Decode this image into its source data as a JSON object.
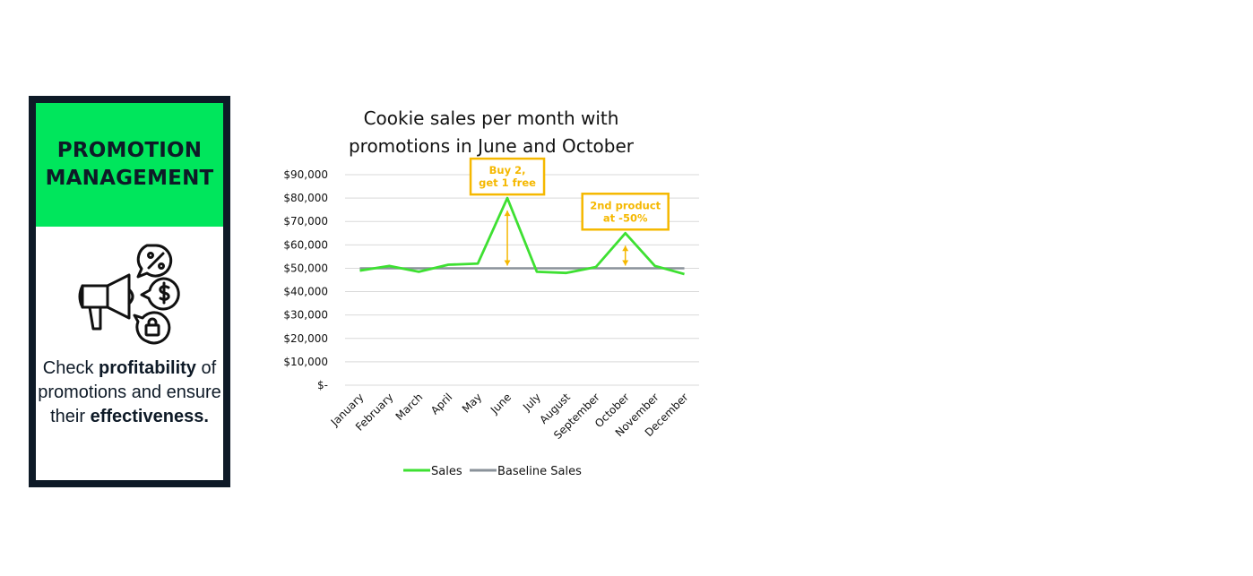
{
  "card": {
    "title_line1": "PROMOTION",
    "title_line2": "MANAGEMENT",
    "icon": "megaphone-with-percent-dollar-lock-bubbles-icon",
    "text_part1": "Check ",
    "text_bold1": "profitability",
    "text_part2": " of promotions and ensure their ",
    "text_bold2": "effectiveness."
  },
  "colors": {
    "accent_green": "#00e65c",
    "dark_navy": "#0e1a27",
    "sales_line": "#3ee032",
    "baseline_line": "#8a929a",
    "annotation": "#f5b800"
  },
  "chart_data": {
    "type": "line",
    "title_line1": "Cookie sales per month with",
    "title_line2": "promotions in June and October",
    "categories": [
      "January",
      "February",
      "March",
      "April",
      "May",
      "June",
      "July",
      "August",
      "September",
      "October",
      "November",
      "December"
    ],
    "series": [
      {
        "name": "Sales",
        "values": [
          49000,
          51000,
          48500,
          51500,
          52000,
          80000,
          48500,
          48000,
          50500,
          65000,
          51000,
          47500
        ]
      },
      {
        "name": "Baseline Sales",
        "values": [
          50000,
          50000,
          50000,
          50000,
          50000,
          50000,
          50000,
          50000,
          50000,
          50000,
          50000,
          50000
        ]
      }
    ],
    "ylim": [
      0,
      90000
    ],
    "yticks": [
      0,
      10000,
      20000,
      30000,
      40000,
      50000,
      60000,
      70000,
      80000,
      90000
    ],
    "ytick_labels": [
      "$-",
      "$10,000",
      "$20,000",
      "$30,000",
      "$40,000",
      "$50,000",
      "$60,000",
      "$70,000",
      "$80,000",
      "$90,000"
    ],
    "grid": true,
    "legend_position": "bottom",
    "annotations": [
      {
        "category": "June",
        "line1": "Buy 2,",
        "line2": "get 1 free",
        "from": 50000,
        "to": 80000
      },
      {
        "category": "October",
        "line1": "2nd product",
        "line2": "at -50%",
        "from": 50000,
        "to": 65000
      }
    ]
  }
}
